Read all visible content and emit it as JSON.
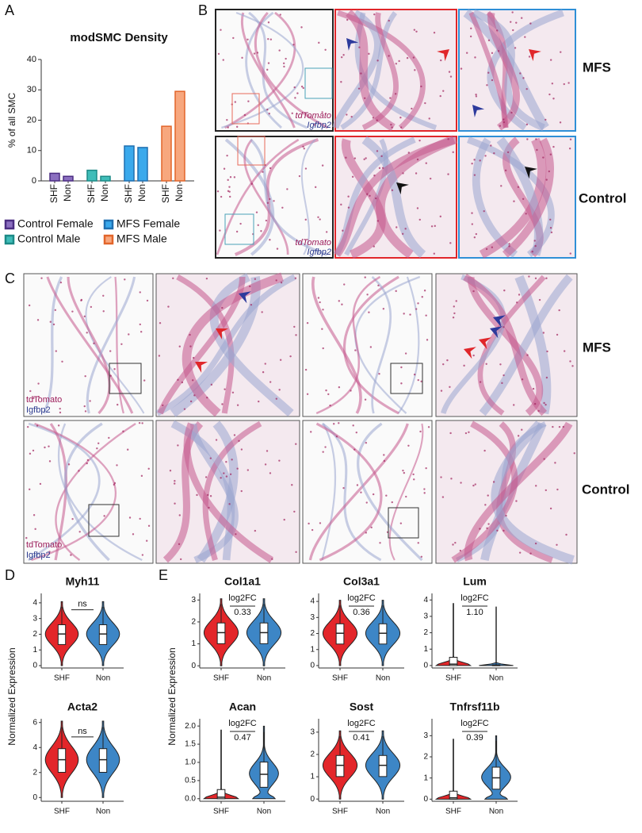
{
  "panel_labels": [
    "A",
    "B",
    "C",
    "D",
    "E"
  ],
  "panel_b": {
    "row_labels": [
      "MFS",
      "Control"
    ],
    "stain_labels": [
      "tdTomato",
      "Igfbp2"
    ]
  },
  "panel_c": {
    "row_labels": [
      "MFS",
      "Control"
    ],
    "stain_labels": [
      "tdTomato",
      "Igfbp2"
    ]
  },
  "chart_data": [
    {
      "type": "bar",
      "title": "modSMC Density",
      "ylabel": "% of all SMC",
      "categories": [
        "SHF",
        "Non",
        "SHF",
        "Non",
        "SHF",
        "Non",
        "SHF",
        "Non"
      ],
      "series": [
        {
          "name": "Control Female",
          "color": "#8b6fc0",
          "edgecolor": "#4b2d82",
          "values": [
            2.5,
            1.5,
            null,
            null,
            null,
            null,
            null,
            null
          ]
        },
        {
          "name": "Control Male",
          "color": "#40bdb9",
          "edgecolor": "#1b8a86",
          "values": [
            null,
            null,
            3.5,
            1.5,
            null,
            null,
            null,
            null
          ]
        },
        {
          "name": "MFS Female",
          "color": "#3aa9ec",
          "edgecolor": "#1f6fb0",
          "values": [
            null,
            null,
            null,
            null,
            11.5,
            11,
            null,
            null
          ]
        },
        {
          "name": "MFS Male",
          "color": "#f7a77e",
          "edgecolor": "#e2652a",
          "values": [
            null,
            null,
            null,
            null,
            null,
            null,
            18,
            29.5
          ]
        }
      ],
      "ylim": [
        0,
        40
      ],
      "yticks": [
        0,
        10,
        20,
        30,
        40
      ],
      "grid": false
    },
    {
      "type": "violin",
      "title": "Myh11",
      "ylabel": "Normalized Expression",
      "categories": [
        "SHF",
        "Non"
      ],
      "colors": [
        "#e3262a",
        "#3d86c6"
      ],
      "ylim": [
        -0.15,
        4.6
      ],
      "yticks": [
        0,
        1,
        2,
        3,
        4
      ],
      "annotation": [
        "ns"
      ]
    },
    {
      "type": "violin",
      "title": "Acta2",
      "categories": [
        "SHF",
        "Non"
      ],
      "colors": [
        "#e3262a",
        "#3d86c6"
      ],
      "ylim": [
        -0.3,
        6.3
      ],
      "yticks": [
        0,
        2,
        4,
        6
      ],
      "annotation": [
        "ns"
      ]
    },
    {
      "type": "violin",
      "title": "Col1a1",
      "ylabel": "Normalized Expression",
      "categories": [
        "SHF",
        "Non"
      ],
      "colors": [
        "#e3262a",
        "#3d86c6"
      ],
      "ylim": [
        -0.1,
        3.3
      ],
      "yticks": [
        0,
        1,
        2,
        3
      ],
      "annotation": [
        "log2FC",
        "0.33"
      ]
    },
    {
      "type": "violin",
      "title": "Col3a1",
      "categories": [
        "SHF",
        "Non"
      ],
      "colors": [
        "#e3262a",
        "#3d86c6"
      ],
      "ylim": [
        -0.15,
        4.5
      ],
      "yticks": [
        0,
        1,
        2,
        3,
        4
      ],
      "annotation": [
        "log2FC",
        "0.36"
      ]
    },
    {
      "type": "violin",
      "title": "Lum",
      "categories": [
        "SHF",
        "Non"
      ],
      "colors": [
        "#e3262a",
        "#3d86c6"
      ],
      "ylim": [
        -0.15,
        4.4
      ],
      "yticks": [
        0,
        1,
        2,
        3,
        4
      ],
      "annotation": [
        "log2FC",
        "1.10"
      ]
    },
    {
      "type": "violin",
      "title": "Acan",
      "categories": [
        "SHF",
        "Non"
      ],
      "colors": [
        "#e3262a",
        "#3d86c6"
      ],
      "ylim": [
        -0.07,
        2.2
      ],
      "yticks": [
        {
          "value": 0,
          "label": "0.0"
        },
        {
          "value": 0.5,
          "label": "0.5"
        },
        {
          "value": 1,
          "label": "1.0"
        },
        {
          "value": 1.5,
          "label": "1.5"
        },
        {
          "value": 2,
          "label": "2.0"
        }
      ],
      "annotation": [
        "log2FC",
        "0.47"
      ]
    },
    {
      "type": "violin",
      "title": "Sost",
      "categories": [
        "SHF",
        "Non"
      ],
      "colors": [
        "#e3262a",
        "#3d86c6"
      ],
      "ylim": [
        -0.1,
        3.6
      ],
      "yticks": [
        0,
        1,
        2,
        3
      ],
      "annotation": [
        "log2FC",
        "0.41"
      ]
    },
    {
      "type": "violin",
      "title": "Tnfrsf11b",
      "categories": [
        "SHF",
        "Non"
      ],
      "colors": [
        "#e3262a",
        "#3d86c6"
      ],
      "ylim": [
        -0.1,
        3.8
      ],
      "yticks": [
        0,
        1,
        2,
        3
      ],
      "annotation": [
        "log2FC",
        "0.39"
      ]
    }
  ]
}
